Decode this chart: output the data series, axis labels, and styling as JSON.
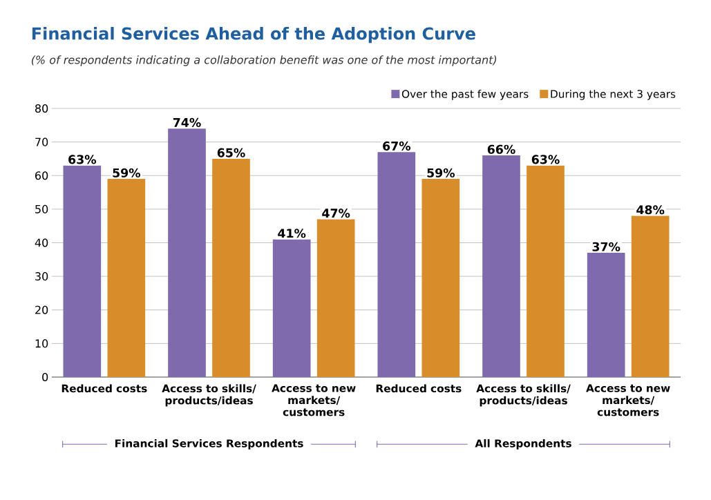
{
  "chart_data": {
    "type": "bar",
    "title": "Financial Services Ahead of the Adoption Curve",
    "subtitle": "(% of respondents indicating a collaboration benefit was one of the most important)",
    "categories": [
      "Reduced costs",
      "Access to skills/ products/ideas",
      "Access to new markets/ customers",
      "Reduced costs",
      "Access to skills/ products/ideas",
      "Access to new markets/ customers"
    ],
    "series": [
      {
        "name": "Over the past few years",
        "color": "#7f6aae",
        "values": [
          63,
          74,
          41,
          67,
          66,
          37
        ],
        "value_labels": [
          "63%",
          "74%",
          "41%",
          "67%",
          "66%",
          "37%"
        ]
      },
      {
        "name": "During the next 3 years",
        "color": "#d98c2a",
        "values": [
          59,
          65,
          47,
          59,
          63,
          48
        ],
        "value_labels": [
          "59%",
          "65%",
          "47%",
          "59%",
          "63%",
          "48%"
        ]
      }
    ],
    "ylim": [
      0,
      80
    ],
    "yticks": [
      0,
      10,
      20,
      30,
      40,
      50,
      60,
      70,
      80
    ],
    "grid": "y",
    "legend": "top right",
    "annotations": [
      "Financial Services Respondents",
      "All Respondents"
    ]
  }
}
